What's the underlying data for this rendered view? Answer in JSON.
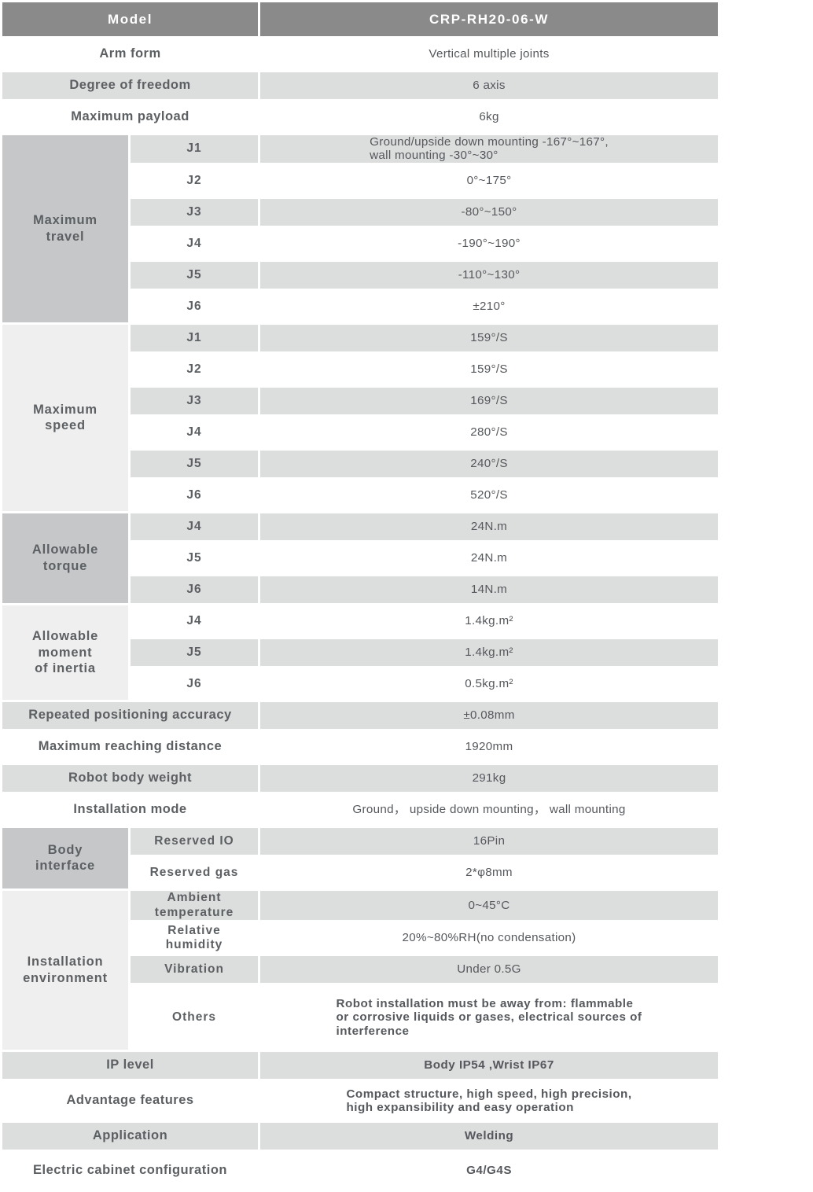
{
  "colors": {
    "header_bg": "#8a8a8a",
    "header_text": "#ffffff",
    "group_dark_bg": "#c5c7c8",
    "group_light_bg": "#f0efef",
    "stripe_gray": "#dcdddd",
    "stripe_white": "#ffffff",
    "label_text": "#5c6063",
    "value_text": "#55585c"
  },
  "table": {
    "rows": [
      {
        "label": "Model",
        "value": "CRP-RH20-06-W"
      },
      {
        "label": "Arm form",
        "value": "Vertical multiple joints"
      },
      {
        "label": "Degree of freedom",
        "value": "6 axis"
      },
      {
        "label": "Maximum payload",
        "value": "6kg"
      },
      {
        "group": "Maximum\ntravel",
        "span": 6,
        "sub": "J1",
        "value": "Ground/upside down mounting -167°~167°,\nwall mounting -30°~30°"
      },
      {
        "sub": "J2",
        "value": "0°~175°"
      },
      {
        "sub": "J3",
        "value": "-80°~150°"
      },
      {
        "sub": "J4",
        "value": "-190°~190°"
      },
      {
        "sub": "J5",
        "value": "-110°~130°"
      },
      {
        "sub": "J6",
        "value": "±210°"
      },
      {
        "group": "Maximum\nspeed",
        "span": 6,
        "sub": "J1",
        "value": "159°/S"
      },
      {
        "sub": "J2",
        "value": "159°/S"
      },
      {
        "sub": "J3",
        "value": "169°/S"
      },
      {
        "sub": "J4",
        "value": "280°/S"
      },
      {
        "sub": "J5",
        "value": "240°/S"
      },
      {
        "sub": "J6",
        "value": "520°/S"
      },
      {
        "group": "Allowable\ntorque",
        "span": 3,
        "sub": "J4",
        "value": "24N.m"
      },
      {
        "sub": "J5",
        "value": "24N.m"
      },
      {
        "sub": "J6",
        "value": "14N.m"
      },
      {
        "group": "Allowable\nmoment\nof inertia",
        "span": 3,
        "sub": "J4",
        "value": "1.4kg.m²"
      },
      {
        "sub": "J5",
        "value": "1.4kg.m²"
      },
      {
        "sub": "J6",
        "value": "0.5kg.m²"
      },
      {
        "label": "Repeated positioning accuracy",
        "value": "±0.08mm"
      },
      {
        "label": "Maximum reaching distance",
        "value": "1920mm"
      },
      {
        "label": "Robot body weight",
        "value": "291kg"
      },
      {
        "label": "Installation mode",
        "value": "Ground， upside down mounting， wall mounting"
      },
      {
        "group": "Body\ninterface",
        "span": 2,
        "sub": "Reserved IO",
        "value": "16Pin"
      },
      {
        "sub": "Reserved gas",
        "value": "2*φ8mm"
      },
      {
        "group": "Installation\nenvironment",
        "span": 4,
        "sub": "Ambient\ntemperature",
        "value": "0~45°C"
      },
      {
        "sub": "Relative\nhumidity",
        "value": "20%~80%RH(no condensation)"
      },
      {
        "sub": "Vibration",
        "value": "Under 0.5G"
      },
      {
        "sub": "Others",
        "value": "Robot installation must be away from: flammable\nor corrosive liquids or gases, electrical sources of\ninterference"
      },
      {
        "label": "IP level",
        "value": "Body IP54 ,Wrist IP67"
      },
      {
        "label": "Advantage features",
        "value": "Compact structure, high speed, high precision,\nhigh expansibility and easy operation"
      },
      {
        "label": "Application",
        "value": "Welding"
      },
      {
        "label": "Electric cabinet configuration",
        "value": "G4/G4S"
      }
    ]
  }
}
